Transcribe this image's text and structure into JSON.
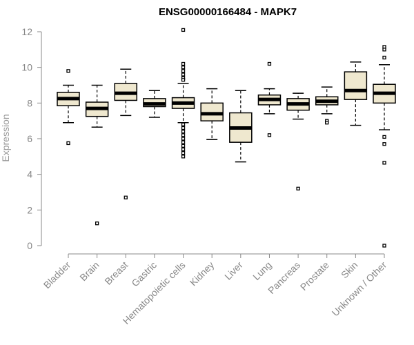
{
  "chart_data": {
    "type": "box",
    "title": "ENSG00000166484 - MAPK7",
    "ylabel": "Expression",
    "xlabel": "",
    "ylim": [
      0,
      12
    ],
    "yticks": [
      0,
      2,
      4,
      6,
      8,
      10,
      12
    ],
    "categories": [
      "Bladder",
      "Brain",
      "Breast",
      "Gastric",
      "Hematopoietic cells",
      "Kidney",
      "Liver",
      "Lung",
      "Pancreas",
      "Prostate",
      "Skin",
      "Unknown / Other"
    ],
    "boxes": [
      {
        "q1": 7.85,
        "median": 8.25,
        "q3": 8.6,
        "whisker_low": 6.9,
        "whisker_high": 9.0,
        "outliers": [
          9.8,
          5.75
        ]
      },
      {
        "q1": 7.25,
        "median": 7.7,
        "q3": 8.05,
        "whisker_low": 6.65,
        "whisker_high": 9.0,
        "outliers": [
          1.25
        ]
      },
      {
        "q1": 8.15,
        "median": 8.55,
        "q3": 9.1,
        "whisker_low": 7.3,
        "whisker_high": 9.9,
        "outliers": [
          2.7
        ]
      },
      {
        "q1": 7.8,
        "median": 7.95,
        "q3": 8.25,
        "whisker_low": 7.2,
        "whisker_high": 8.7,
        "outliers": []
      },
      {
        "q1": 7.7,
        "median": 8.0,
        "q3": 8.3,
        "whisker_low": 6.9,
        "whisker_high": 9.1,
        "outliers": [
          12.1,
          10.2,
          10.0,
          9.8,
          9.6,
          9.4,
          9.3,
          6.8,
          6.6,
          6.4,
          6.2,
          6.0,
          5.8,
          5.6,
          5.4,
          5.2,
          5.0
        ]
      },
      {
        "q1": 7.0,
        "median": 7.4,
        "q3": 8.0,
        "whisker_low": 5.95,
        "whisker_high": 8.8,
        "outliers": []
      },
      {
        "q1": 5.8,
        "median": 6.6,
        "q3": 7.45,
        "whisker_low": 4.7,
        "whisker_high": 8.7,
        "outliers": []
      },
      {
        "q1": 7.9,
        "median": 8.2,
        "q3": 8.45,
        "whisker_low": 7.4,
        "whisker_high": 8.8,
        "outliers": [
          10.2,
          6.2
        ]
      },
      {
        "q1": 7.6,
        "median": 7.95,
        "q3": 8.25,
        "whisker_low": 7.1,
        "whisker_high": 8.55,
        "outliers": [
          3.2
        ]
      },
      {
        "q1": 7.9,
        "median": 8.1,
        "q3": 8.35,
        "whisker_low": 7.4,
        "whisker_high": 8.9,
        "outliers": [
          7.0,
          6.9
        ]
      },
      {
        "q1": 8.2,
        "median": 8.7,
        "q3": 9.75,
        "whisker_low": 6.75,
        "whisker_high": 10.3,
        "outliers": []
      },
      {
        "q1": 8.0,
        "median": 8.55,
        "q3": 9.05,
        "whisker_low": 6.5,
        "whisker_high": 10.15,
        "outliers": [
          11.15,
          11.0,
          10.55,
          6.1,
          5.7,
          4.65,
          0.0
        ]
      }
    ],
    "box_fill": "#efe8cf",
    "stroke_color": "#000000",
    "axis_color": "#888888"
  }
}
